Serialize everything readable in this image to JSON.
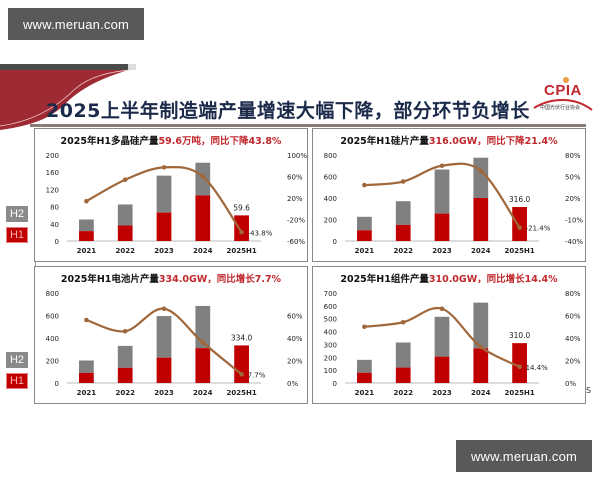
{
  "watermark": {
    "top": "www.meruan.com",
    "bottom": "www.meruan.com"
  },
  "header": {
    "title": "2025上半年制造端产量增速大幅下降，部分环节负增长",
    "logo": {
      "text": "CPIA",
      "subtitle": "中国光伏行业协会"
    }
  },
  "legend": {
    "h2": "H2",
    "h1": "H1"
  },
  "colors": {
    "h1": "#c00000",
    "h2": "#808080",
    "line": "#a0673a",
    "title_red": "#c0282d",
    "title_dark": "#1b2a4a"
  },
  "edge_char": "S",
  "chart_data": [
    {
      "type": "bar",
      "stacked": true,
      "title_prefix": "2025年H1多晶硅产量",
      "title_highlight": "59.6万吨，同比下降43.8%",
      "categories": [
        "2021",
        "2022",
        "2023",
        "2024",
        "2025H1"
      ],
      "series": [
        {
          "name": "H1",
          "values": [
            23,
            36,
            66,
            106,
            59.6
          ]
        },
        {
          "name": "H2",
          "values": [
            27,
            49,
            86,
            76,
            0
          ]
        },
        {
          "name": "同比增速",
          "axis": "right",
          "type": "line",
          "values": [
            14,
            54,
            77,
            60,
            -43.8
          ]
        }
      ],
      "bar_label": "59.6",
      "line_label": "-43.8%",
      "ylim": [
        0,
        200
      ],
      "yticks": [
        "0",
        "40",
        "80",
        "120",
        "160",
        "200"
      ],
      "y2lim": [
        -60,
        100
      ],
      "y2ticks": [
        "-60%",
        "-20%",
        "20%",
        "60%",
        "100%"
      ]
    },
    {
      "type": "bar",
      "stacked": true,
      "title_prefix": "2025年H1硅片产量",
      "title_highlight": "316.0GW，同比下降21.4%",
      "categories": [
        "2021",
        "2022",
        "2023",
        "2024",
        "2025H1"
      ],
      "series": [
        {
          "name": "H1",
          "values": [
            100,
            150,
            255,
            400,
            316.0
          ]
        },
        {
          "name": "H2",
          "values": [
            125,
            220,
            410,
            375,
            0
          ]
        },
        {
          "name": "同比增速",
          "axis": "right",
          "type": "line",
          "values": [
            38,
            43,
            65,
            58,
            -21.4
          ]
        }
      ],
      "bar_label": "316.0",
      "line_label": "-21.4%",
      "ylim": [
        0,
        800
      ],
      "yticks": [
        "0",
        "200",
        "400",
        "600",
        "800"
      ],
      "y2lim": [
        -40,
        80
      ],
      "y2ticks": [
        "-40%",
        "-10%",
        "20%",
        "50%",
        "80%"
      ]
    },
    {
      "type": "bar",
      "stacked": true,
      "title_prefix": "2025年H1电池片产量",
      "title_highlight": "334.0GW，同比增长7.7%",
      "categories": [
        "2021",
        "2022",
        "2023",
        "2024",
        "2025H1"
      ],
      "series": [
        {
          "name": "H1",
          "values": [
            90,
            135,
            225,
            310,
            334.0
          ]
        },
        {
          "name": "H2",
          "values": [
            110,
            195,
            370,
            375,
            0
          ]
        },
        {
          "name": "同比增速",
          "axis": "right",
          "type": "line",
          "values": [
            56,
            46,
            66,
            36,
            7.7
          ]
        }
      ],
      "bar_label": "334.0",
      "line_label": "7.7%",
      "ylim": [
        0,
        800
      ],
      "yticks": [
        "0",
        "200",
        "400",
        "600",
        "800"
      ],
      "y2lim": [
        0,
        80
      ],
      "y2ticks": [
        "0%",
        "20%",
        "40%",
        "60%"
      ]
    },
    {
      "type": "bar",
      "stacked": true,
      "title_prefix": "2025年H1组件产量",
      "title_highlight": "310.0GW，同比增长14.4%",
      "categories": [
        "2021",
        "2022",
        "2023",
        "2024",
        "2025H1"
      ],
      "series": [
        {
          "name": "H1",
          "values": [
            80,
            120,
            205,
            270,
            310.0
          ]
        },
        {
          "name": "H2",
          "values": [
            100,
            195,
            310,
            355,
            0
          ]
        },
        {
          "name": "同比增速",
          "axis": "right",
          "type": "line",
          "values": [
            50,
            54,
            66,
            32,
            14.4
          ]
        }
      ],
      "bar_label": "310.0",
      "line_label": "14.4%",
      "ylim": [
        0,
        700
      ],
      "yticks": [
        "0",
        "100",
        "200",
        "300",
        "400",
        "500",
        "600",
        "700"
      ],
      "y2lim": [
        0,
        80
      ],
      "y2ticks": [
        "0%",
        "20%",
        "40%",
        "60%",
        "80%"
      ]
    }
  ]
}
